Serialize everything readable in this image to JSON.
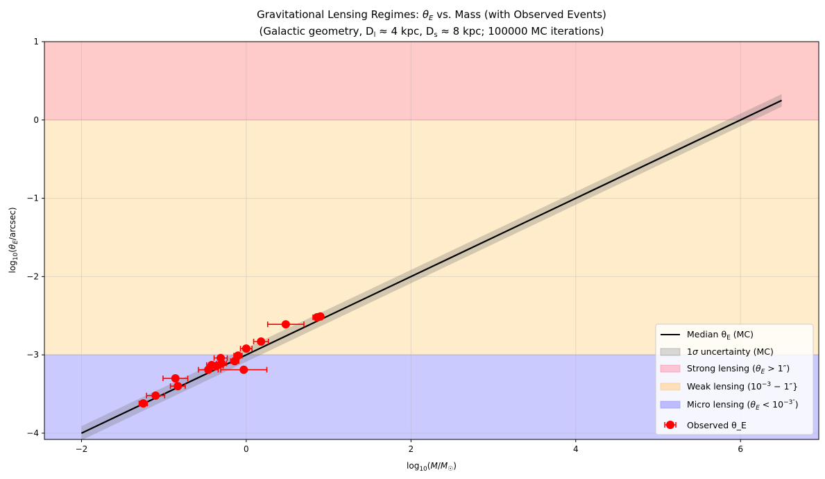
{
  "chart_data": {
    "type": "line",
    "title_line1": "Gravitational Lensing Regimes: θ_E vs. Mass (with Observed Events)",
    "title_line2": "(Galactic geometry, D_l ≈ 4 kpc, D_s ≈ 8 kpc; 100000 MC iterations)",
    "xlabel": "log₁₀(M/M☉)",
    "ylabel": "log₁₀(θ_E/arcsec)",
    "xlim": [
      -2.45,
      6.95
    ],
    "ylim": [
      -4.08,
      1.0
    ],
    "xticks": [
      -2,
      0,
      2,
      4,
      6
    ],
    "xtick_labels": [
      "−2",
      "0",
      "2",
      "4",
      "6"
    ],
    "yticks": [
      -4,
      -3,
      -2,
      -1,
      0,
      1
    ],
    "ytick_labels": [
      "−4",
      "−3",
      "−2",
      "−1",
      "0",
      "1"
    ],
    "grid": true,
    "legend_position": "bottom-right",
    "regions": [
      {
        "name": "Strong lensing (θ_E > 1″)",
        "ymin": 0,
        "ymax": 1.0,
        "color": "#ffcaca"
      },
      {
        "name": "Weak lensing (10⁻³ − 1″}",
        "ymin": -3,
        "ymax": 0,
        "color": "#ffecca"
      },
      {
        "name": "Micro lensing (θ_E < 10⁻³″)",
        "ymin": -4.08,
        "ymax": -3,
        "color": "#cbcaff"
      }
    ],
    "median_line": {
      "name": "Median θ_E (MC)",
      "x": [
        -2.0,
        6.5
      ],
      "y": [
        -4.0,
        0.25
      ],
      "color": "#000000"
    },
    "uncertainty_band": {
      "name": "1σ uncertainty (MC)",
      "x": [
        -2.0,
        6.5
      ],
      "y_lower": [
        -4.09,
        0.17
      ],
      "y_upper": [
        -3.91,
        0.33
      ],
      "color": "#7a7a7a"
    },
    "observed_points": {
      "name": "Observed θ_E",
      "color": "#ff0000",
      "points": [
        {
          "x": -1.25,
          "y": -3.62,
          "xerr": 0.05
        },
        {
          "x": -1.1,
          "y": -3.52,
          "xerr": 0.11
        },
        {
          "x": -0.86,
          "y": -3.3,
          "xerr": 0.15
        },
        {
          "x": -0.83,
          "y": -3.4,
          "xerr": 0.09
        },
        {
          "x": -0.46,
          "y": -3.19,
          "xerr": 0.12
        },
        {
          "x": -0.42,
          "y": -3.13,
          "xerr": 0.06
        },
        {
          "x": -0.36,
          "y": -3.14,
          "xerr": 0.08
        },
        {
          "x": -0.31,
          "y": -3.04,
          "xerr": 0.08
        },
        {
          "x": -0.3,
          "y": -3.11,
          "xerr": 0.06
        },
        {
          "x": -0.14,
          "y": -3.08,
          "xerr": 0.05
        },
        {
          "x": -0.1,
          "y": -3.01,
          "xerr": 0.05
        },
        {
          "x": -0.03,
          "y": -3.19,
          "xerr": 0.28
        },
        {
          "x": 0.0,
          "y": -2.92,
          "xerr": 0.07
        },
        {
          "x": 0.18,
          "y": -2.83,
          "xerr": 0.09
        },
        {
          "x": 0.48,
          "y": -2.61,
          "xerr": 0.22
        },
        {
          "x": 0.86,
          "y": -2.52,
          "xerr": 0.05
        },
        {
          "x": 0.9,
          "y": -2.51,
          "xerr": 0.03
        }
      ]
    }
  },
  "legend": {
    "median_label": "Median θ",
    "median_sub": "E",
    "median_tail": " (MC)",
    "sigma_label_a": "1",
    "sigma_label_sym": "σ",
    "sigma_label_b": " uncertainty (MC)",
    "strong_label_a": "Strong lensing (",
    "strong_label_theta": "θ",
    "strong_label_sub": "E",
    "strong_label_b": " > 1″)",
    "weak_label_a": "Weak lensing (10",
    "weak_label_sup": "−3",
    "weak_label_b": " − 1″}",
    "micro_label_a": "Micro lensing (",
    "micro_label_theta": "θ",
    "micro_label_sub": "E",
    "micro_label_b": " < 10",
    "micro_label_sup": "−3″",
    "micro_label_c": ")",
    "observed_label": "Observed θ_E"
  }
}
